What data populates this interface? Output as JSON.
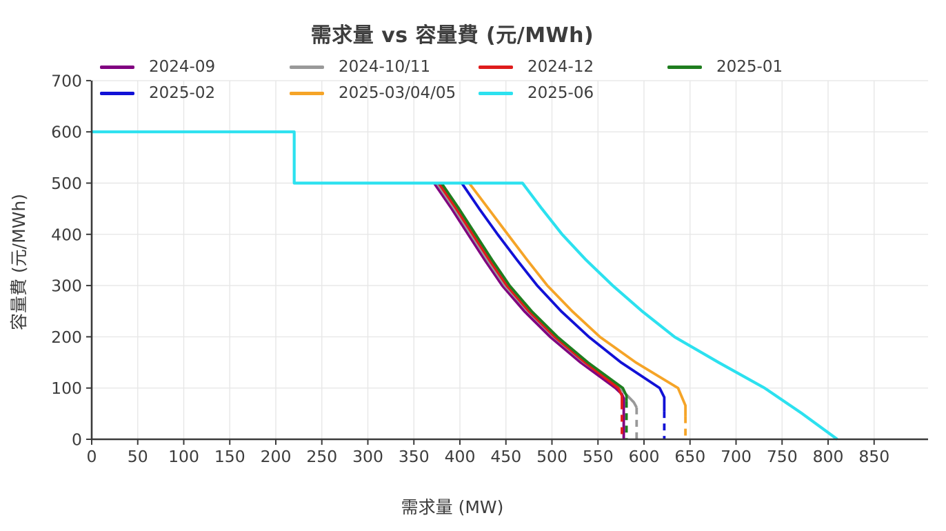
{
  "colors": {
    "background": "#ffffff",
    "axis": "#3a3a3a",
    "grid": "#e7e7e7",
    "text": "#3d3d3d"
  },
  "chart_data": {
    "type": "line",
    "title": "需求量 vs 容量費 (元/MWh)",
    "xlabel": "需求量 (MW)",
    "ylabel": "容量費 (元/MWh)",
    "xlim": [
      0,
      908
    ],
    "ylim": [
      0,
      700
    ],
    "xticks": [
      0,
      50,
      100,
      150,
      200,
      250,
      300,
      350,
      400,
      450,
      500,
      550,
      600,
      650,
      700,
      750,
      800,
      850
    ],
    "yticks": [
      0,
      100,
      200,
      300,
      400,
      500,
      600,
      700
    ],
    "grid": true,
    "legend_position": "top",
    "legend_columns": 4,
    "series": [
      {
        "name": "2024-09",
        "color": "#800080",
        "width": 3.8,
        "solid": [
          [
            220,
            500
          ],
          [
            372,
            500
          ],
          [
            391,
            450
          ],
          [
            409,
            400
          ],
          [
            427,
            350
          ],
          [
            446,
            300
          ],
          [
            470,
            250
          ],
          [
            498,
            200
          ],
          [
            531,
            150
          ],
          [
            569,
            100
          ],
          [
            576,
            88
          ],
          [
            578,
            80
          ],
          [
            578,
            0
          ]
        ],
        "dashed": []
      },
      {
        "name": "2024-10/11",
        "color": "#999999",
        "width": 3.8,
        "solid": [
          [
            220,
            500
          ],
          [
            375,
            500
          ],
          [
            394,
            450
          ],
          [
            412,
            400
          ],
          [
            430,
            350
          ],
          [
            449,
            300
          ],
          [
            474,
            250
          ],
          [
            502,
            200
          ],
          [
            535,
            150
          ],
          [
            574,
            100
          ],
          [
            589,
            72
          ],
          [
            592,
            62
          ]
        ],
        "dashed": [
          [
            592,
            62
          ],
          [
            592,
            0
          ]
        ]
      },
      {
        "name": "2024-12",
        "color": "#df1c1c",
        "width": 3.8,
        "solid": [
          [
            220,
            500
          ],
          [
            377,
            500
          ],
          [
            396,
            450
          ],
          [
            414,
            400
          ],
          [
            432,
            350
          ],
          [
            451,
            300
          ],
          [
            475,
            250
          ],
          [
            503,
            200
          ],
          [
            536,
            150
          ],
          [
            572,
            100
          ],
          [
            576,
            85
          ],
          [
            576,
            72
          ]
        ],
        "dashed": [
          [
            576,
            72
          ],
          [
            576,
            0
          ]
        ]
      },
      {
        "name": "2025-01",
        "color": "#1e7d1e",
        "width": 3.8,
        "solid": [
          [
            220,
            500
          ],
          [
            380,
            500
          ],
          [
            399,
            450
          ],
          [
            417,
            400
          ],
          [
            435,
            350
          ],
          [
            454,
            300
          ],
          [
            478,
            250
          ],
          [
            506,
            200
          ],
          [
            539,
            150
          ],
          [
            577,
            100
          ],
          [
            581,
            85
          ],
          [
            581,
            75
          ]
        ],
        "dashed": [
          [
            581,
            75
          ],
          [
            581,
            0
          ]
        ]
      },
      {
        "name": "2025-02",
        "color": "#1111d6",
        "width": 3.8,
        "solid": [
          [
            220,
            500
          ],
          [
            402,
            500
          ],
          [
            421,
            450
          ],
          [
            441,
            400
          ],
          [
            462,
            350
          ],
          [
            484,
            300
          ],
          [
            510,
            250
          ],
          [
            540,
            200
          ],
          [
            575,
            150
          ],
          [
            617,
            100
          ],
          [
            622,
            82
          ],
          [
            622,
            55
          ]
        ],
        "dashed": [
          [
            622,
            55
          ],
          [
            622,
            0
          ]
        ]
      },
      {
        "name": "2025-03/04/05",
        "color": "#f5a427",
        "width": 3.8,
        "solid": [
          [
            220,
            500
          ],
          [
            410,
            500
          ],
          [
            431,
            450
          ],
          [
            452,
            400
          ],
          [
            473,
            350
          ],
          [
            495,
            300
          ],
          [
            522,
            250
          ],
          [
            552,
            200
          ],
          [
            591,
            150
          ],
          [
            637,
            100
          ],
          [
            645,
            66
          ],
          [
            645,
            45
          ]
        ],
        "dashed": [
          [
            645,
            45
          ],
          [
            645,
            0
          ]
        ]
      },
      {
        "name": "2025-06",
        "color": "#2ce1ef",
        "width": 4.2,
        "solid": [
          [
            0,
            600
          ],
          [
            220,
            600
          ],
          [
            220,
            500
          ],
          [
            468,
            500
          ],
          [
            489,
            450
          ],
          [
            511,
            400
          ],
          [
            537,
            350
          ],
          [
            566,
            300
          ],
          [
            598,
            250
          ],
          [
            633,
            200
          ],
          [
            681,
            150
          ],
          [
            731,
            100
          ],
          [
            772,
            50
          ],
          [
            810,
            0
          ]
        ],
        "dashed": []
      }
    ]
  }
}
